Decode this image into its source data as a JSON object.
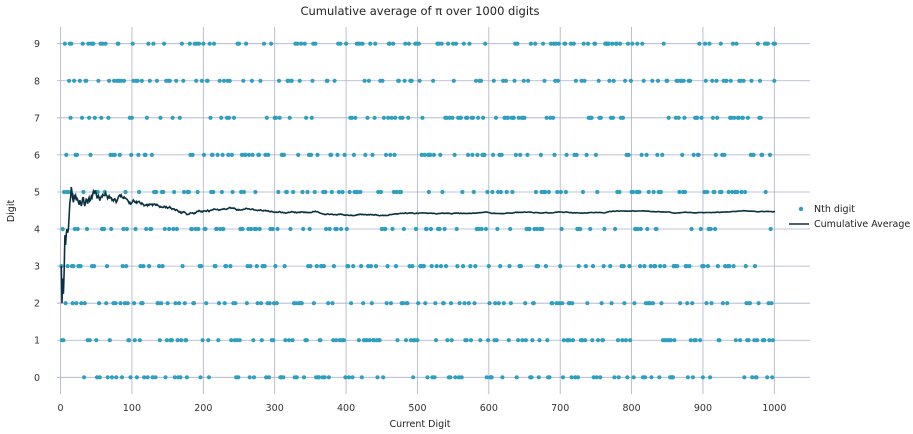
{
  "chart_data": {
    "type": "scatter",
    "title": "Cumulative average of π over 1000 digits",
    "xlabel": "Current Digit",
    "ylabel": "Digit",
    "xlim": [
      -5,
      1050
    ],
    "ylim": [
      -0.45,
      9.45
    ],
    "x_ticks": [
      0,
      100,
      200,
      300,
      400,
      500,
      600,
      700,
      800,
      900,
      1000
    ],
    "y_ticks": [
      0,
      1,
      2,
      3,
      4,
      5,
      6,
      7,
      8,
      9
    ],
    "grid": true,
    "legend_position": "center-right",
    "series": [
      {
        "name": "Nth digit",
        "kind": "scatter",
        "color": "#2e9fbe",
        "digits": "31415926535897932384626433832795028841971693993751058209749445923078164062862089986280348253421170679821480865132823066470938446095505822317253594081284811174502841027019385211055596446229489549303819644288109756659334461284756482337867831652712019091456485669234603486104543266482133936072602491412737245870066063155881748815209209628292540917153643678925903600113305305488204665213841469519415116094330572703657595919530921861173819326117931051185480744623799627495673518857527248912279381830119491298336733624406566430860213949463952247371907021798609437027705392171762931767523846748184676694051320005681271452635608277857713427577896091736371787214684409012249534301465495853710507922796892589235420199561121290219608640344181598136297747713099605187072113499999983729780499510597317328160963185950244594553469083026425223082533446850352619311881710100031378387528865875332083814206171776691473035982534904287554687311595628638823537875937519577818577805321712268066130019278766111959092164201989"
      },
      {
        "name": "Cumulative Average",
        "kind": "line",
        "color": "#0b3040",
        "note_values": "cumulative mean of the first n digits; final value ≈ 4.48"
      }
    ]
  }
}
